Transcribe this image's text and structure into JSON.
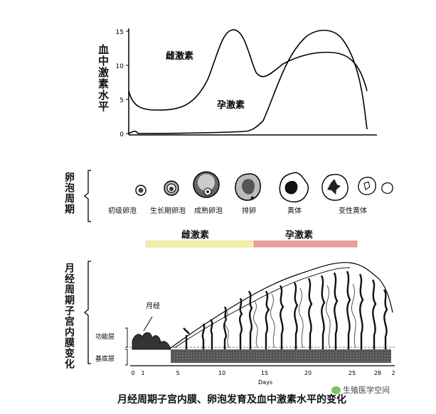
{
  "hormone_panel": {
    "axis_label": "血中激素水平",
    "y_ticks": [
      "15",
      "10",
      "5",
      "0"
    ],
    "estrogen_label": "雌激素",
    "progesterone_label": "孕激素"
  },
  "follicle_panel": {
    "axis_label": "卵泡周期",
    "stages": [
      "初级卵泡",
      "生长期卵泡",
      "成熟卵泡",
      "排卵",
      "黄体",
      "变性黄体"
    ]
  },
  "phase_bar": {
    "estrogen_phase": "雌激素",
    "progesterone_phase": "孕激素",
    "estrogen_color": "#f4f0a0",
    "progesterone_color": "#e7a0a0"
  },
  "endometrium_panel": {
    "axis_label": "月经周期子宫内膜变化",
    "menses_label": "月经",
    "functional_layer": "功能层",
    "basal_layer": "基底层",
    "x_ticks": [
      "0",
      "1",
      "5",
      "10",
      "15",
      "20",
      "25",
      "28",
      "2"
    ],
    "x_unit": "Days"
  },
  "caption": "月经周期子宫内膜、卵泡发育及血中激素水平的变化",
  "watermark": "生殖医学空间"
}
